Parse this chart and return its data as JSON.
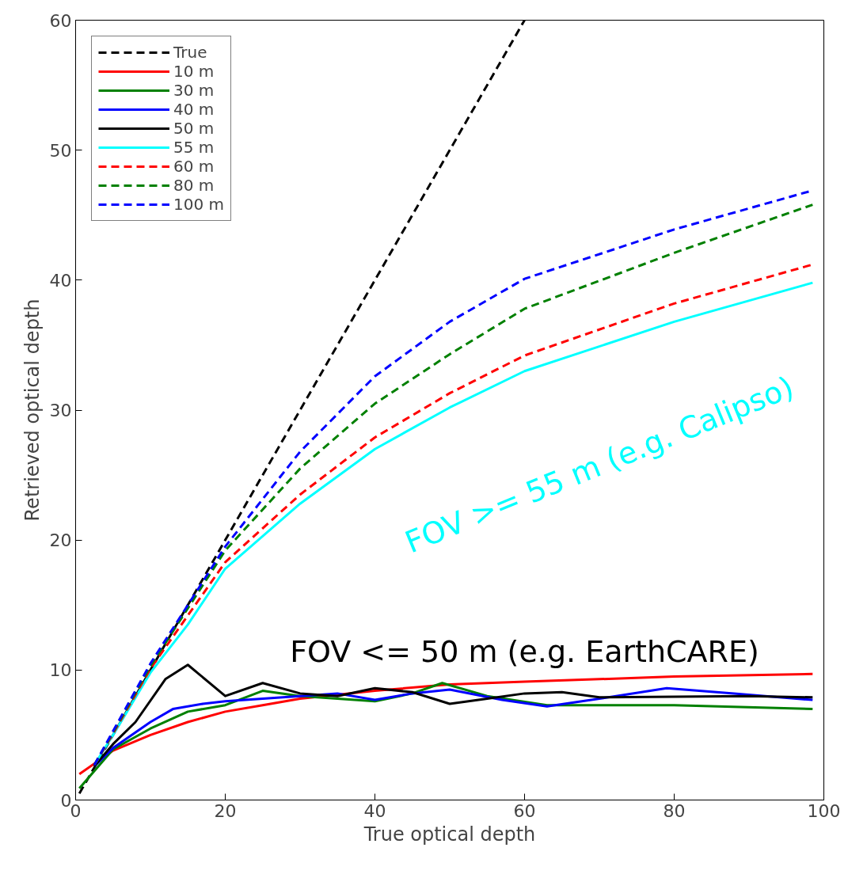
{
  "chart_data": {
    "type": "line",
    "xlabel": "True optical depth",
    "ylabel": "Retrieved optical depth",
    "xlim": [
      0,
      100
    ],
    "ylim": [
      0,
      60
    ],
    "xticks": [
      0,
      20,
      40,
      60,
      80,
      100
    ],
    "yticks": [
      0,
      10,
      20,
      30,
      40,
      50,
      60
    ],
    "grid": false,
    "legend": "top left",
    "marker": "none",
    "annotations": [
      "FOV <= 50 m (e.g. EarthCARE)",
      "FOV >= 55 m (e.g. Calipso)"
    ],
    "series": [
      {
        "name": "True",
        "color": "#000000",
        "line_style": "dashed",
        "x": [
          0.5,
          60
        ],
        "values": [
          0.5,
          60
        ]
      },
      {
        "name": "10 m",
        "color": "#ff0000",
        "line_style": "solid",
        "x": [
          0.5,
          5,
          10,
          15,
          20,
          25,
          30,
          40,
          50,
          60,
          70,
          80,
          98.5
        ],
        "values": [
          2.0,
          3.8,
          5.0,
          6.0,
          6.8,
          7.3,
          7.8,
          8.4,
          8.9,
          9.1,
          9.3,
          9.5,
          9.7
        ]
      },
      {
        "name": "30 m",
        "color": "#008000",
        "line_style": "solid",
        "x": [
          0.5,
          5,
          10,
          15,
          20,
          25,
          30,
          35,
          40,
          45,
          49,
          55,
          63,
          80,
          98.5
        ],
        "values": [
          0.9,
          3.9,
          5.5,
          6.8,
          7.3,
          8.4,
          8.0,
          7.8,
          7.6,
          8.2,
          9.0,
          8.0,
          7.3,
          7.3,
          7.0
        ]
      },
      {
        "name": "40 m",
        "color": "#0000ff",
        "line_style": "solid",
        "x": [
          2.5,
          5,
          10,
          13,
          17,
          20,
          25,
          30,
          35,
          40,
          45,
          50,
          57,
          63,
          70,
          79,
          88,
          98.5
        ],
        "values": [
          2.6,
          4.0,
          6.0,
          7.0,
          7.4,
          7.6,
          7.8,
          8.0,
          8.2,
          7.7,
          8.2,
          8.5,
          7.7,
          7.2,
          7.8,
          8.6,
          8.2,
          7.7
        ]
      },
      {
        "name": "50 m",
        "color": "#000000",
        "line_style": "solid",
        "x": [
          2.5,
          5,
          8,
          12,
          15,
          20,
          25,
          30,
          35,
          40,
          45,
          50,
          55,
          60,
          65,
          70,
          90,
          98.5
        ],
        "values": [
          2.6,
          4.3,
          6.0,
          9.3,
          10.4,
          8.0,
          9.0,
          8.2,
          8.0,
          8.6,
          8.3,
          7.4,
          7.8,
          8.2,
          8.3,
          7.9,
          8.0,
          7.9
        ]
      },
      {
        "name": "55 m",
        "color": "#00ffff",
        "line_style": "solid",
        "x": [
          2.5,
          5,
          10,
          15,
          20,
          30,
          40,
          50,
          60,
          80,
          98.5
        ],
        "values": [
          2.7,
          5.0,
          9.8,
          13.5,
          17.8,
          22.8,
          27.0,
          30.2,
          33.0,
          36.8,
          39.8
        ]
      },
      {
        "name": "60 m",
        "color": "#ff0000",
        "line_style": "dashed",
        "x": [
          2.5,
          5,
          10,
          20,
          30,
          40,
          50,
          60,
          80,
          98.5
        ],
        "values": [
          2.7,
          5.1,
          10.1,
          18.3,
          23.5,
          27.9,
          31.3,
          34.2,
          38.2,
          41.2
        ]
      },
      {
        "name": "80 m",
        "color": "#008000",
        "line_style": "dashed",
        "x": [
          2.5,
          5,
          10,
          20,
          30,
          40,
          50,
          60,
          80,
          98.5
        ],
        "values": [
          2.7,
          5.2,
          10.3,
          19.2,
          25.5,
          30.5,
          34.3,
          37.8,
          42.1,
          45.8
        ]
      },
      {
        "name": "100 m",
        "color": "#0000ff",
        "line_style": "dashed",
        "x": [
          2.5,
          5,
          10,
          20,
          30,
          40,
          50,
          60,
          80,
          98.5
        ],
        "values": [
          2.7,
          5.3,
          10.5,
          19.5,
          26.8,
          32.6,
          36.8,
          40.1,
          43.9,
          46.9
        ]
      }
    ]
  }
}
